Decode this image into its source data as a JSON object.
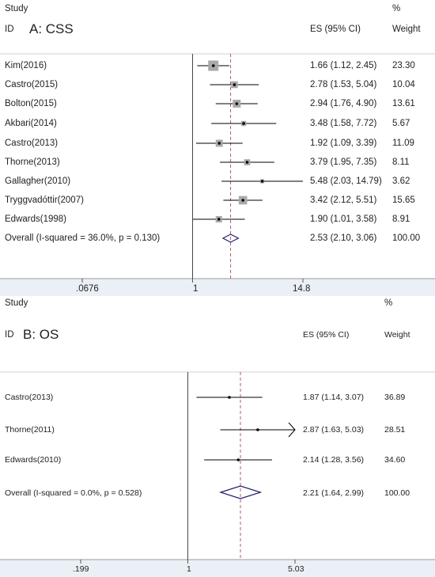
{
  "chart_data": [
    {
      "type": "forest",
      "panel_title": "A: CSS",
      "header": {
        "study": "Study",
        "id": "ID",
        "es": "ES (95% CI)",
        "pct": "%",
        "weight": "Weight"
      },
      "x_ticks": [
        ".0676",
        "1",
        "14.8"
      ],
      "x_tick_values": [
        0.0676,
        1,
        14.8
      ],
      "xlim": [
        0.0676,
        14.8
      ],
      "scale": "log",
      "studies": [
        {
          "name": "Kim(2016)",
          "es": 1.66,
          "lo": 1.12,
          "hi": 2.45,
          "es_text": "1.66 (1.12, 2.45)",
          "weight": 23.3,
          "weight_text": "23.30"
        },
        {
          "name": "Castro(2015)",
          "es": 2.78,
          "lo": 1.53,
          "hi": 5.04,
          "es_text": "2.78 (1.53, 5.04)",
          "weight": 10.04,
          "weight_text": "10.04"
        },
        {
          "name": "Bolton(2015)",
          "es": 2.94,
          "lo": 1.76,
          "hi": 4.9,
          "es_text": "2.94 (1.76, 4.90)",
          "weight": 13.61,
          "weight_text": "13.61"
        },
        {
          "name": "Akbari(2014)",
          "es": 3.48,
          "lo": 1.58,
          "hi": 7.72,
          "es_text": "3.48 (1.58, 7.72)",
          "weight": 5.67,
          "weight_text": "5.67"
        },
        {
          "name": "Castro(2013)",
          "es": 1.92,
          "lo": 1.09,
          "hi": 3.39,
          "es_text": "1.92 (1.09, 3.39)",
          "weight": 11.09,
          "weight_text": "11.09"
        },
        {
          "name": "Thorne(2013)",
          "es": 3.79,
          "lo": 1.95,
          "hi": 7.35,
          "es_text": "3.79 (1.95, 7.35)",
          "weight": 8.11,
          "weight_text": "8.11"
        },
        {
          "name": "Gallagher(2010)",
          "es": 5.48,
          "lo": 2.03,
          "hi": 14.79,
          "es_text": "5.48 (2.03, 14.79)",
          "weight": 3.62,
          "weight_text": "3.62"
        },
        {
          "name": "Tryggvadóttir(2007)",
          "es": 3.42,
          "lo": 2.12,
          "hi": 5.51,
          "es_text": "3.42 (2.12, 5.51)",
          "weight": 15.65,
          "weight_text": "15.65"
        },
        {
          "name": "Edwards(1998)",
          "es": 1.9,
          "lo": 1.01,
          "hi": 3.58,
          "es_text": "1.90 (1.01, 3.58)",
          "weight": 8.91,
          "weight_text": "8.91"
        }
      ],
      "overall": {
        "label": "Overall  (I-squared = 36.0%, p = 0.130)",
        "es": 2.53,
        "lo": 2.1,
        "hi": 3.06,
        "es_text": "2.53 (2.10, 3.06)",
        "weight_text": "100.00"
      }
    },
    {
      "type": "forest",
      "panel_title": "B: OS",
      "header": {
        "study": "Study",
        "id": "ID",
        "es": "ES (95% CI)",
        "pct": "%",
        "weight": "Weight"
      },
      "x_ticks": [
        ".199",
        "1",
        "5.03"
      ],
      "x_tick_values": [
        0.199,
        1,
        5.03
      ],
      "xlim": [
        0.199,
        5.03
      ],
      "scale": "log",
      "studies": [
        {
          "name": "Castro(2013)",
          "es": 1.87,
          "lo": 1.14,
          "hi": 3.07,
          "es_text": "1.87 (1.14, 3.07)",
          "weight": 36.89,
          "weight_text": "36.89"
        },
        {
          "name": "Thorne(2011)",
          "es": 2.87,
          "lo": 1.63,
          "hi": 5.03,
          "es_text": "2.87 (1.63, 5.03)",
          "weight": 28.51,
          "weight_text": "28.51",
          "arrow_right": true
        },
        {
          "name": "Edwards(2010)",
          "es": 2.14,
          "lo": 1.28,
          "hi": 3.56,
          "es_text": "2.14 (1.28, 3.56)",
          "weight": 34.6,
          "weight_text": "34.60"
        }
      ],
      "overall": {
        "label": "Overall  (I-squared = 0.0%, p = 0.528)",
        "es": 2.21,
        "lo": 1.64,
        "hi": 2.99,
        "es_text": "2.21 (1.64, 2.99)",
        "weight_text": "100.00"
      }
    }
  ],
  "colors": {
    "marker": "#000000",
    "box": "#a9a9a9",
    "diamond": "#1f1f6e",
    "ref_line": "#b55a6a",
    "axis": "#333333",
    "strip": "#eaf0f5"
  }
}
